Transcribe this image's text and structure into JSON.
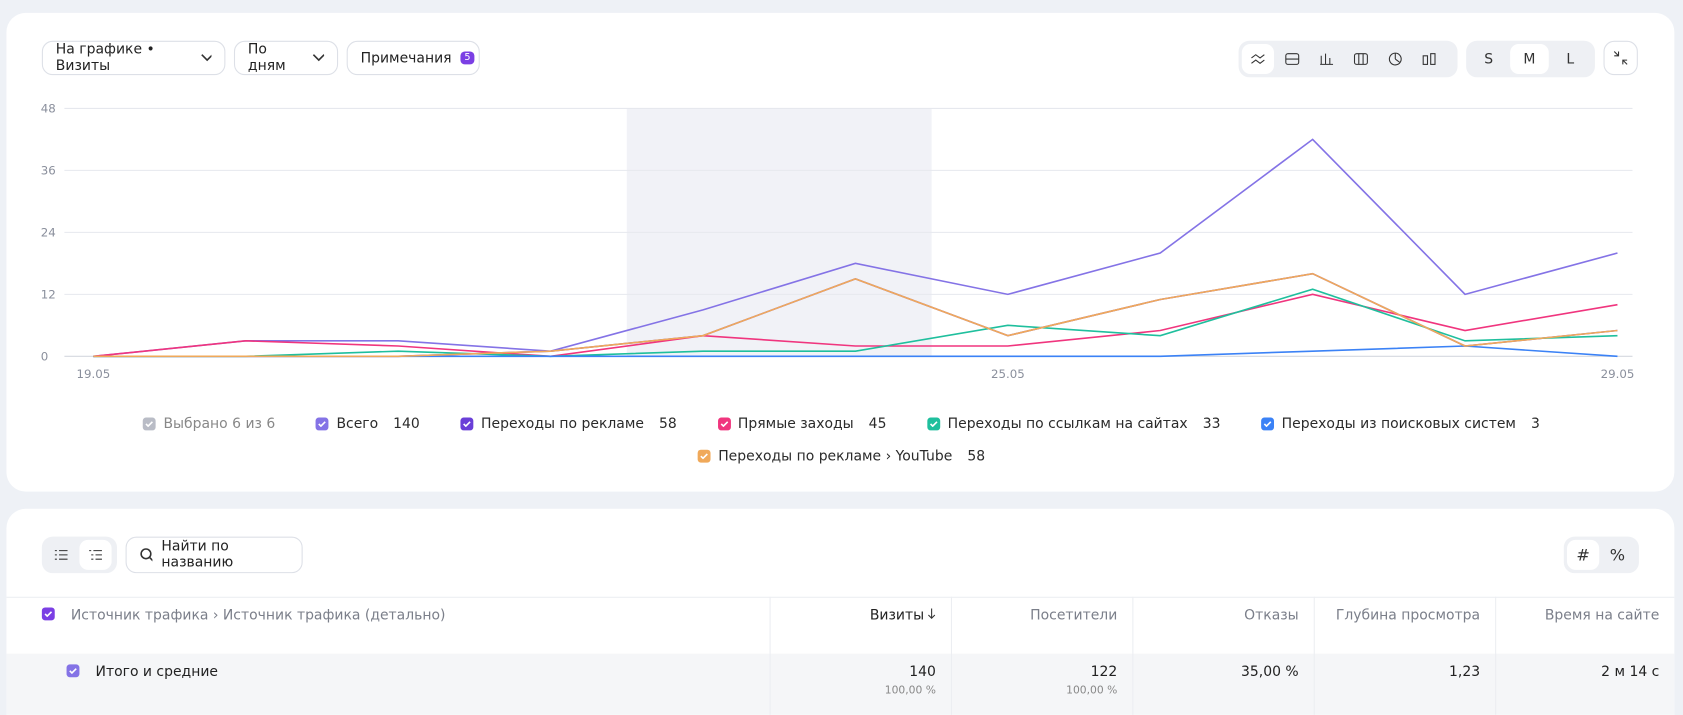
{
  "toolbar": {
    "metric": "На графике • Визиты",
    "period": "По дням",
    "notes": "Примечания",
    "notes_count": "5",
    "sizes": [
      "S",
      "M",
      "L"
    ]
  },
  "chart_data": {
    "type": "line",
    "categories": [
      "19.05",
      null,
      null,
      null,
      null,
      null,
      "25.05",
      null,
      null,
      null,
      "29.05"
    ],
    "ylim": [
      0,
      48
    ],
    "yticks": [
      0,
      12,
      24,
      36,
      48
    ],
    "grid": true,
    "series": [
      {
        "name": "Всего",
        "color": "#8473e6",
        "total": 140,
        "values": [
          0,
          3,
          3,
          1,
          9,
          18,
          12,
          20,
          42,
          12,
          20
        ]
      },
      {
        "name": "Переходы по рекламе",
        "color": "#6a3fd8",
        "total": 58,
        "values": [
          0,
          0,
          0,
          1,
          4,
          15,
          4,
          11,
          16,
          2,
          5
        ]
      },
      {
        "name": "Прямые заходы",
        "color": "#f0357e",
        "total": 45,
        "values": [
          0,
          3,
          2,
          0,
          4,
          2,
          2,
          5,
          12,
          5,
          10
        ]
      },
      {
        "name": "Переходы по ссылкам на сайтах",
        "color": "#1fbf9d",
        "total": 33,
        "values": [
          0,
          0,
          1,
          0,
          1,
          1,
          6,
          4,
          13,
          3,
          4
        ]
      },
      {
        "name": "Переходы из поисковых систем",
        "color": "#3b82f6",
        "total": 3,
        "values": [
          0,
          0,
          0,
          0,
          0,
          0,
          0,
          0,
          1,
          2,
          0
        ]
      },
      {
        "name": "Переходы по рекламе › YouTube",
        "color": "#f0a95a",
        "total": 58,
        "values": [
          0,
          0,
          0,
          1,
          4,
          15,
          4,
          11,
          16,
          2,
          5
        ]
      }
    ]
  },
  "legend_summary": "Выбрано 6 из 6",
  "table": {
    "search": "Найти по названию",
    "modes": [
      "#",
      "%"
    ],
    "columns": [
      "Источник трафика › Источник трафика (детально)",
      "Визиты",
      "Посетители",
      "Отказы",
      "Глубина просмотра",
      "Время на сайте"
    ],
    "total_row": {
      "label": "Итого и средние",
      "cells": [
        {
          "value": "140",
          "share": "100,00 %"
        },
        {
          "value": "122",
          "share": "100,00 %"
        },
        {
          "value": "35,00 %"
        },
        {
          "value": "1,23"
        },
        {
          "value": "2 м 14 с"
        }
      ]
    }
  }
}
